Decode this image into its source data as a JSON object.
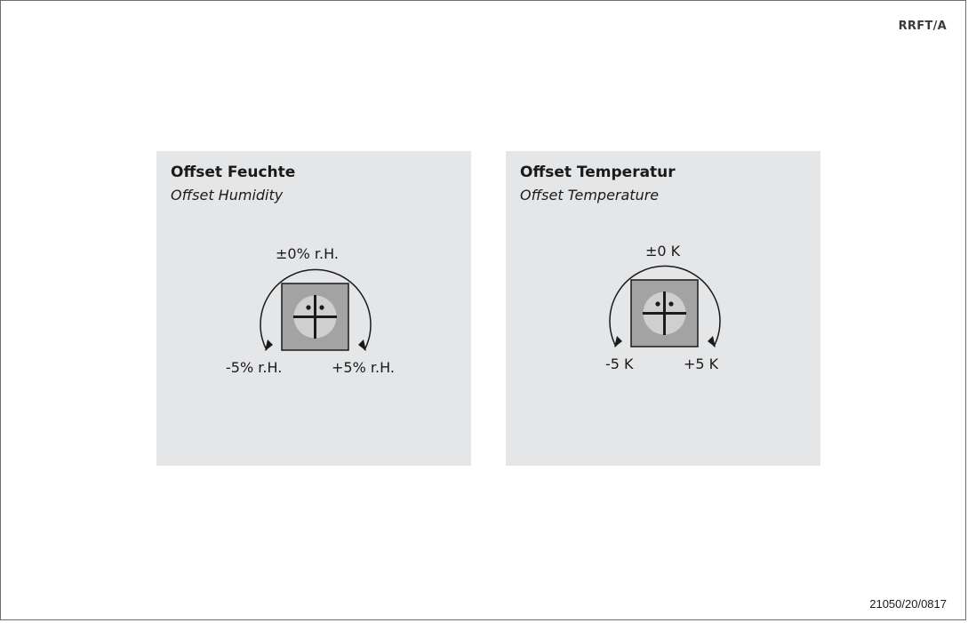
{
  "header": {
    "model_code": "RRFT/A"
  },
  "footer": {
    "doc_number": "21050/20/0817"
  },
  "panels": [
    {
      "title": "Offset Feuchte",
      "subtitle": "Offset Humidity",
      "label_center": "±0% r.H.",
      "label_left": "-5% r.H.",
      "label_right": "+5% r.H."
    },
    {
      "title": "Offset Temperatur",
      "subtitle": "Offset Temperature",
      "label_center": "±0 K",
      "label_left": "-5 K",
      "label_right": "+5 K"
    }
  ],
  "colors": {
    "panel_background": "#e5e6e8",
    "potentiometer_body": "#a3a3a3",
    "potentiometer_knob": "#cfcfcf",
    "ink": "#1a1a1a"
  }
}
